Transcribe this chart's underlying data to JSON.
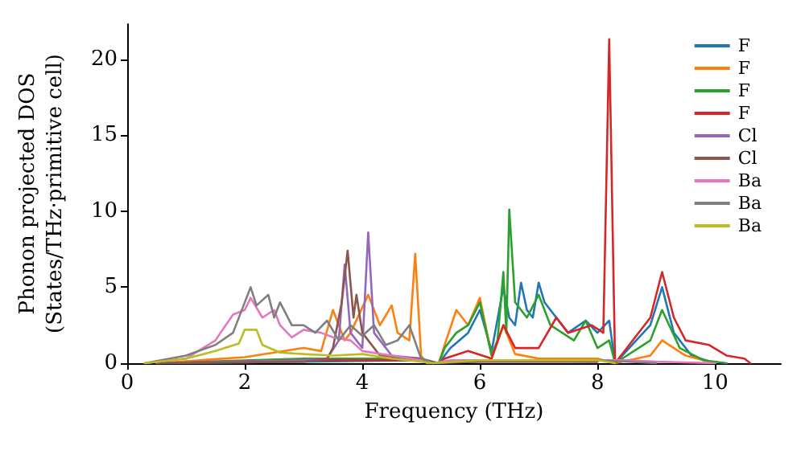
{
  "chart_data": {
    "type": "line",
    "xlabel": "Frequency (THz)",
    "ylabel": "Phonon projected DOS\n(States/THz·primitive cell)",
    "xlim": [
      0,
      11.12
    ],
    "ylim": [
      0,
      22.3
    ],
    "xticks": [
      0,
      2,
      4,
      6,
      8,
      10
    ],
    "yticks": [
      0,
      5,
      10,
      15,
      20
    ],
    "grid": false,
    "legend": "top right",
    "marker": "none",
    "line_style": "solid",
    "series": [
      {
        "name": "F",
        "color": "#1f77b4",
        "x": [
          0.5,
          3,
          5,
          5.3,
          5.5,
          5.8,
          6,
          6.2,
          6.4,
          6.5,
          6.6,
          6.7,
          6.8,
          6.9,
          7,
          7.1,
          7.2,
          7.5,
          7.8,
          8,
          8.2,
          8.3,
          8.9,
          9.1,
          9.3,
          9.6,
          10
        ],
        "values": [
          0,
          0.1,
          0.2,
          0,
          1,
          2,
          3.5,
          0.8,
          5,
          3,
          2.5,
          5.3,
          3.5,
          3,
          5.3,
          4,
          3.5,
          2,
          2.8,
          2,
          2.8,
          0,
          2.5,
          5,
          2,
          0.5,
          0
        ]
      },
      {
        "name": "F",
        "color": "#ff7f0e",
        "x": [
          0.5,
          2,
          3,
          3.3,
          3.5,
          3.7,
          3.8,
          4.1,
          4.3,
          4.5,
          4.6,
          4.8,
          4.9,
          5,
          5.1,
          5.3,
          5.4,
          5.6,
          5.8,
          6,
          6.2,
          6.4,
          6.6,
          7,
          8,
          8.3,
          8.9,
          9.1,
          9.5,
          10
        ],
        "values": [
          0,
          0.4,
          1,
          0.8,
          3.5,
          1.5,
          2,
          4.5,
          2.5,
          3.8,
          2,
          1.5,
          7.2,
          0.5,
          0,
          0,
          1.2,
          3.5,
          2.5,
          4.3,
          0.5,
          2.5,
          0.6,
          0.3,
          0.3,
          0,
          0.5,
          1.5,
          0.5,
          0
        ]
      },
      {
        "name": "F",
        "color": "#2ca02c",
        "x": [
          0.5,
          3,
          5,
          5.3,
          5.4,
          5.6,
          5.8,
          6,
          6.2,
          6.3,
          6.4,
          6.45,
          6.5,
          6.6,
          6.8,
          7,
          7.2,
          7.6,
          7.8,
          8,
          8.2,
          8.3,
          8.9,
          9.1,
          9.4,
          9.8,
          10.2
        ],
        "values": [
          0,
          0.3,
          0.3,
          0,
          1,
          2,
          2.5,
          4,
          0.5,
          1.5,
          6,
          2,
          10.1,
          4,
          3,
          4.5,
          2.5,
          1.5,
          2.8,
          1,
          1.5,
          0,
          1.5,
          3.5,
          1,
          0.2,
          0
        ]
      },
      {
        "name": "F",
        "color": "#d62728",
        "x": [
          0.5,
          3,
          5,
          5.3,
          5.4,
          5.8,
          6.2,
          6.4,
          6.6,
          7,
          7.3,
          7.5,
          7.9,
          8.1,
          8.2,
          8.3,
          8.9,
          9.1,
          9.3,
          9.5,
          9.9,
          10.2,
          10.5,
          10.6
        ],
        "values": [
          0,
          0.2,
          0.2,
          0,
          0.3,
          0.8,
          0.3,
          2.5,
          1,
          1,
          3,
          2,
          2.5,
          2,
          21.3,
          0,
          3,
          6,
          3,
          1.5,
          1.2,
          0.5,
          0.3,
          0
        ]
      },
      {
        "name": "Cl",
        "color": "#9467bd",
        "x": [
          0.5,
          3,
          3.4,
          3.6,
          3.7,
          3.8,
          4,
          4.1,
          4.2,
          4.5,
          5,
          5.2,
          6,
          8
        ],
        "values": [
          0,
          0.2,
          0.3,
          1.5,
          6.5,
          2,
          1,
          8.6,
          2,
          0.5,
          0.3,
          0,
          0.2,
          0.1
        ]
      },
      {
        "name": "Cl",
        "color": "#8c564b",
        "x": [
          0.5,
          3,
          3.4,
          3.5,
          3.65,
          3.75,
          3.85,
          3.9,
          4,
          4.3,
          5,
          5.2,
          6,
          8
        ],
        "values": [
          0,
          0.1,
          0.3,
          1,
          4,
          7.4,
          3,
          4.5,
          2,
          0.5,
          0.3,
          0,
          0.1,
          0.1
        ]
      },
      {
        "name": "Ba",
        "color": "#e377c2",
        "x": [
          0.3,
          1,
          1.5,
          1.8,
          2,
          2.1,
          2.3,
          2.5,
          2.6,
          2.8,
          3,
          3.3,
          3.5,
          3.8,
          4,
          4.5,
          5,
          5.2,
          5.5,
          8.5,
          9,
          10
        ],
        "values": [
          0,
          0.3,
          1.5,
          3.2,
          3.5,
          4.3,
          3,
          3.5,
          2.5,
          1.7,
          2.2,
          2,
          1.7,
          1.5,
          0.8,
          0.5,
          0.2,
          0,
          0.2,
          0.2,
          0.1,
          0
        ]
      },
      {
        "name": "Ba",
        "color": "#7f7f7f",
        "x": [
          0.3,
          1,
          1.5,
          1.8,
          2.1,
          2.2,
          2.4,
          2.5,
          2.6,
          2.8,
          3,
          3.2,
          3.4,
          3.6,
          3.8,
          4,
          4.2,
          4.4,
          4.6,
          4.8,
          5,
          5.2,
          6,
          8,
          9
        ],
        "values": [
          0,
          0.5,
          1.2,
          2,
          5,
          3.8,
          4.5,
          3,
          4,
          2.5,
          2.5,
          2,
          2.8,
          1.5,
          2.5,
          1.8,
          2.5,
          1.2,
          1.5,
          2.5,
          0.3,
          0,
          0.2,
          0.2,
          0
        ]
      },
      {
        "name": "Ba",
        "color": "#bcbd22",
        "x": [
          0.3,
          1,
          1.5,
          1.9,
          2,
          2.2,
          2.3,
          2.6,
          3,
          3.5,
          4,
          4.5,
          5,
          5.2,
          6,
          8,
          8.3
        ],
        "values": [
          0,
          0.3,
          0.8,
          1.3,
          2.2,
          2.2,
          1.2,
          0.7,
          0.6,
          0.5,
          0.6,
          0.3,
          0.1,
          0,
          0.2,
          0.2,
          0
        ]
      }
    ]
  }
}
